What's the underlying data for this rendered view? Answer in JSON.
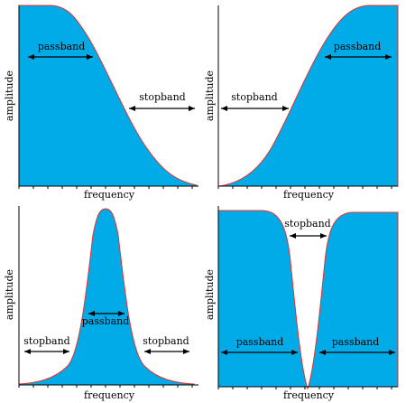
{
  "labels": {
    "amplitude": "amplitude",
    "frequency": "frequency",
    "passband": "passband",
    "stopband": "stopband"
  },
  "colors": {
    "fill": "#00abe8",
    "edge": "#e8302a"
  },
  "panels": [
    {
      "id": "lowpass",
      "shape": "low-pass",
      "bands": [
        "passband",
        "stopband"
      ]
    },
    {
      "id": "highpass",
      "shape": "high-pass",
      "bands": [
        "stopband",
        "passband"
      ]
    },
    {
      "id": "bandpass",
      "shape": "band-pass",
      "bands": [
        "stopband",
        "passband",
        "stopband"
      ]
    },
    {
      "id": "bandstop",
      "shape": "band-stop",
      "bands": [
        "stopband",
        "passband",
        "passband"
      ]
    }
  ]
}
